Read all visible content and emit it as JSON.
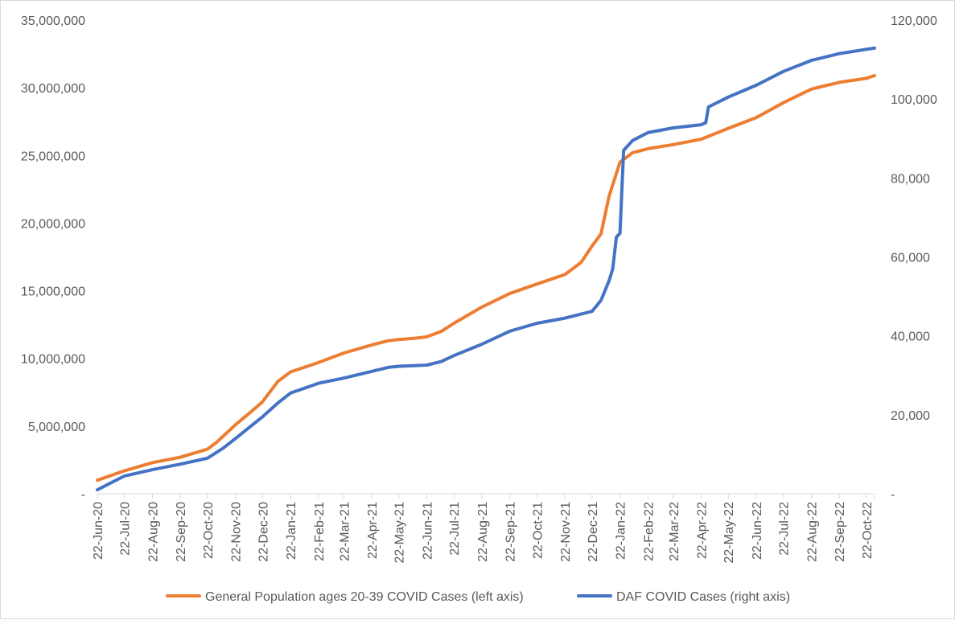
{
  "chart_data": {
    "type": "line",
    "x": [
      "22-Jun-20",
      "22-Jul-20",
      "22-Aug-20",
      "22-Sep-20",
      "22-Oct-20",
      "22-Nov-20",
      "22-Dec-20",
      "22-Jan-21",
      "22-Feb-21",
      "22-Mar-21",
      "22-Apr-21",
      "22-May-21",
      "22-Jun-21",
      "22-Jul-21",
      "22-Aug-21",
      "22-Sep-21",
      "22-Oct-21",
      "22-Nov-21",
      "22-Dec-21",
      "22-Jan-22",
      "22-Feb-22",
      "22-Mar-22",
      "22-Apr-22",
      "22-May-22",
      "22-Jun-22",
      "22-Jul-22",
      "22-Aug-22",
      "22-Sep-22",
      "22-Oct-22"
    ],
    "x_end": "31-Oct-22",
    "y_left": {
      "ylim": [
        0,
        35000000
      ],
      "ticks": [
        "-",
        "5,000,000",
        "10,000,000",
        "15,000,000",
        "20,000,000",
        "25,000,000",
        "30,000,000",
        "35,000,000"
      ]
    },
    "y_right": {
      "ylim": [
        0,
        120000
      ],
      "ticks": [
        "-",
        "20,000",
        "40,000",
        "60,000",
        "80,000",
        "100,000",
        "120,000"
      ]
    },
    "series": [
      {
        "name": "General Population ages 20-39 COVID Cases (left axis)",
        "axis": "left",
        "color": "#ED7D31",
        "points": [
          [
            "22-Jun-20",
            1000000
          ],
          [
            "22-Jul-20",
            1700000
          ],
          [
            "22-Aug-20",
            2300000
          ],
          [
            "22-Sep-20",
            2700000
          ],
          [
            "22-Oct-20",
            3300000
          ],
          [
            "01-Nov-20",
            3800000
          ],
          [
            "22-Nov-20",
            5100000
          ],
          [
            "10-Dec-20",
            6100000
          ],
          [
            "22-Dec-20",
            6800000
          ],
          [
            "08-Jan-21",
            8300000
          ],
          [
            "22-Jan-21",
            9000000
          ],
          [
            "22-Feb-21",
            9700000
          ],
          [
            "22-Mar-21",
            10400000
          ],
          [
            "22-Apr-21",
            11000000
          ],
          [
            "10-May-21",
            11300000
          ],
          [
            "22-May-21",
            11400000
          ],
          [
            "10-Jun-21",
            11500000
          ],
          [
            "22-Jun-21",
            11600000
          ],
          [
            "08-Jul-21",
            12000000
          ],
          [
            "22-Jul-21",
            12600000
          ],
          [
            "22-Aug-21",
            13800000
          ],
          [
            "22-Sep-21",
            14800000
          ],
          [
            "22-Oct-21",
            15500000
          ],
          [
            "22-Nov-21",
            16200000
          ],
          [
            "10-Dec-21",
            17100000
          ],
          [
            "22-Dec-21",
            18300000
          ],
          [
            "01-Jan-22",
            19200000
          ],
          [
            "10-Jan-22",
            22000000
          ],
          [
            "22-Jan-22",
            24500000
          ],
          [
            "05-Feb-22",
            25200000
          ],
          [
            "22-Feb-22",
            25500000
          ],
          [
            "22-Mar-22",
            25800000
          ],
          [
            "22-Apr-22",
            26200000
          ],
          [
            "22-May-22",
            27000000
          ],
          [
            "22-Jun-22",
            27800000
          ],
          [
            "22-Jul-22",
            28900000
          ],
          [
            "22-Aug-22",
            29900000
          ],
          [
            "22-Sep-22",
            30400000
          ],
          [
            "22-Oct-22",
            30700000
          ],
          [
            "31-Oct-22",
            30900000
          ]
        ]
      },
      {
        "name": "DAF COVID Cases (right axis)",
        "axis": "right",
        "color": "#4472C4",
        "points": [
          [
            "22-Jun-20",
            1000
          ],
          [
            "22-Jul-20",
            4500
          ],
          [
            "22-Aug-20",
            6100
          ],
          [
            "22-Sep-20",
            7500
          ],
          [
            "22-Oct-20",
            9000
          ],
          [
            "08-Nov-20",
            11500
          ],
          [
            "22-Nov-20",
            14000
          ],
          [
            "10-Dec-20",
            17300
          ],
          [
            "22-Dec-20",
            19500
          ],
          [
            "08-Jan-21",
            23000
          ],
          [
            "22-Jan-21",
            25500
          ],
          [
            "22-Feb-21",
            28000
          ],
          [
            "22-Mar-21",
            29300
          ],
          [
            "22-Apr-21",
            31000
          ],
          [
            "10-May-21",
            32000
          ],
          [
            "22-May-21",
            32300
          ],
          [
            "22-Jun-21",
            32600
          ],
          [
            "08-Jul-21",
            33500
          ],
          [
            "22-Jul-21",
            35000
          ],
          [
            "22-Aug-21",
            37900
          ],
          [
            "22-Sep-21",
            41200
          ],
          [
            "22-Oct-21",
            43200
          ],
          [
            "22-Nov-21",
            44500
          ],
          [
            "22-Dec-21",
            46200
          ],
          [
            "01-Jan-22",
            49000
          ],
          [
            "10-Jan-22",
            54000
          ],
          [
            "14-Jan-22",
            57000
          ],
          [
            "18-Jan-22",
            65000
          ],
          [
            "22-Jan-22",
            66000
          ],
          [
            "26-Jan-22",
            87000
          ],
          [
            "05-Feb-22",
            89500
          ],
          [
            "22-Feb-22",
            91500
          ],
          [
            "22-Mar-22",
            92700
          ],
          [
            "22-Apr-22",
            93500
          ],
          [
            "27-Apr-22",
            94000
          ],
          [
            "30-Apr-22",
            98000
          ],
          [
            "22-May-22",
            100500
          ],
          [
            "22-Jun-22",
            103500
          ],
          [
            "22-Jul-22",
            107000
          ],
          [
            "22-Aug-22",
            109800
          ],
          [
            "22-Sep-22",
            111500
          ],
          [
            "22-Oct-22",
            112600
          ],
          [
            "31-Oct-22",
            112900
          ]
        ]
      }
    ],
    "legend_position": "bottom",
    "grid": false
  }
}
